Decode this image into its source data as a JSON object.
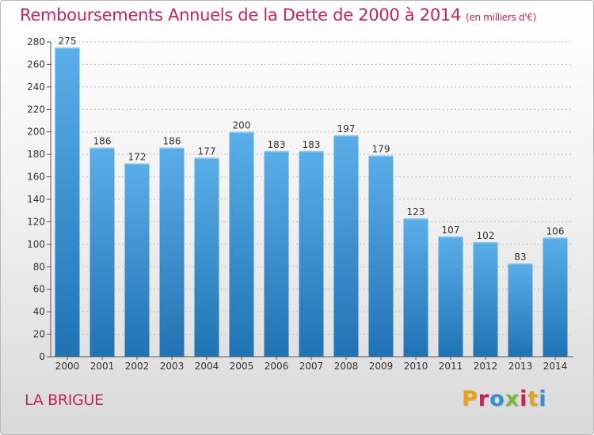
{
  "header": {
    "title": "Remboursements Annuels de la Dette de 2000 à 2014",
    "unit": "(en milliers d'€)"
  },
  "footer": {
    "commune": "LA BRIGUE",
    "logo": "Proxiti"
  },
  "colors": {
    "title": "#c0245e",
    "bar_top": "#5aaee8",
    "bar_bottom": "#1f73b4",
    "logo_letters": [
      "#e8a21a",
      "#c0245e",
      "#3a8fd0",
      "#7bb83a",
      "#c0245e",
      "#e8a21a",
      "#3a8fd0"
    ]
  },
  "chart_data": {
    "type": "bar",
    "title": "Remboursements Annuels de la Dette de 2000 à 2014",
    "subtitle": "(en milliers d'€)",
    "categories": [
      "2000",
      "2001",
      "2002",
      "2003",
      "2004",
      "2005",
      "2006",
      "2007",
      "2008",
      "2009",
      "2010",
      "2011",
      "2012",
      "2013",
      "2014"
    ],
    "values": [
      275,
      186,
      172,
      186,
      177,
      200,
      183,
      183,
      197,
      179,
      123,
      107,
      102,
      83,
      106
    ],
    "ylim": [
      0,
      280
    ],
    "yticks": [
      0,
      20,
      40,
      60,
      80,
      100,
      120,
      140,
      160,
      180,
      200,
      220,
      240,
      260,
      280
    ],
    "grid": true,
    "data_labels": true
  }
}
